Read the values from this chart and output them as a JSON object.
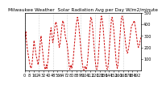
{
  "title": "Milwaukee Weather  Solar Radiation Avg per Day W/m2/minute",
  "line_color": "#cc0000",
  "background_color": "#ffffff",
  "grid_color": "#aaaaaa",
  "ylim": [
    0,
    500
  ],
  "yticks": [
    100,
    200,
    300,
    400,
    500
  ],
  "data": [
    320,
    290,
    340,
    260,
    210,
    170,
    140,
    110,
    80,
    50,
    30,
    20,
    40,
    80,
    140,
    200,
    260,
    220,
    190,
    150,
    120,
    100,
    70,
    50,
    90,
    140,
    200,
    260,
    300,
    250,
    200,
    150,
    100,
    60,
    30,
    10,
    20,
    50,
    20,
    60,
    100,
    160,
    220,
    290,
    340,
    370,
    330,
    280,
    240,
    270,
    310,
    350,
    390,
    420,
    410,
    380,
    340,
    290,
    240,
    200,
    220,
    260,
    310,
    360,
    400,
    430,
    420,
    390,
    350,
    310,
    280,
    260,
    240,
    200,
    150,
    90,
    40,
    10,
    20,
    50,
    20,
    30,
    60,
    110,
    170,
    230,
    290,
    350,
    400,
    430,
    460,
    440,
    400,
    350,
    290,
    240,
    180,
    130,
    80,
    40,
    10,
    5,
    10,
    40,
    20,
    10,
    30,
    70,
    130,
    200,
    280,
    360,
    430,
    460,
    450,
    410,
    360,
    300,
    230,
    160,
    100,
    55,
    20,
    10,
    30,
    70,
    140,
    220,
    300,
    380,
    440,
    470,
    450,
    410,
    360,
    290,
    220,
    150,
    90,
    50,
    20,
    10,
    30,
    80,
    150,
    230,
    310,
    380,
    440,
    460,
    440,
    400,
    350,
    280,
    200,
    130,
    80,
    40,
    20,
    50,
    100,
    170,
    250,
    330,
    400,
    450,
    470,
    460,
    430,
    390,
    340,
    290,
    240,
    200,
    170,
    150,
    160,
    190,
    220,
    260,
    300,
    340,
    380,
    390,
    400,
    410,
    420,
    430,
    400,
    370,
    330,
    290,
    250,
    220,
    200,
    210,
    230,
    260,
    280,
    300
  ],
  "grid_positions": [
    0,
    24,
    48,
    72,
    96,
    120,
    144,
    168
  ],
  "xlabel_fontsize": 3.5,
  "ylabel_fontsize": 3.5,
  "title_fontsize": 4.2,
  "line_width": 0.7,
  "dash_pattern": [
    2.5,
    1.5
  ]
}
